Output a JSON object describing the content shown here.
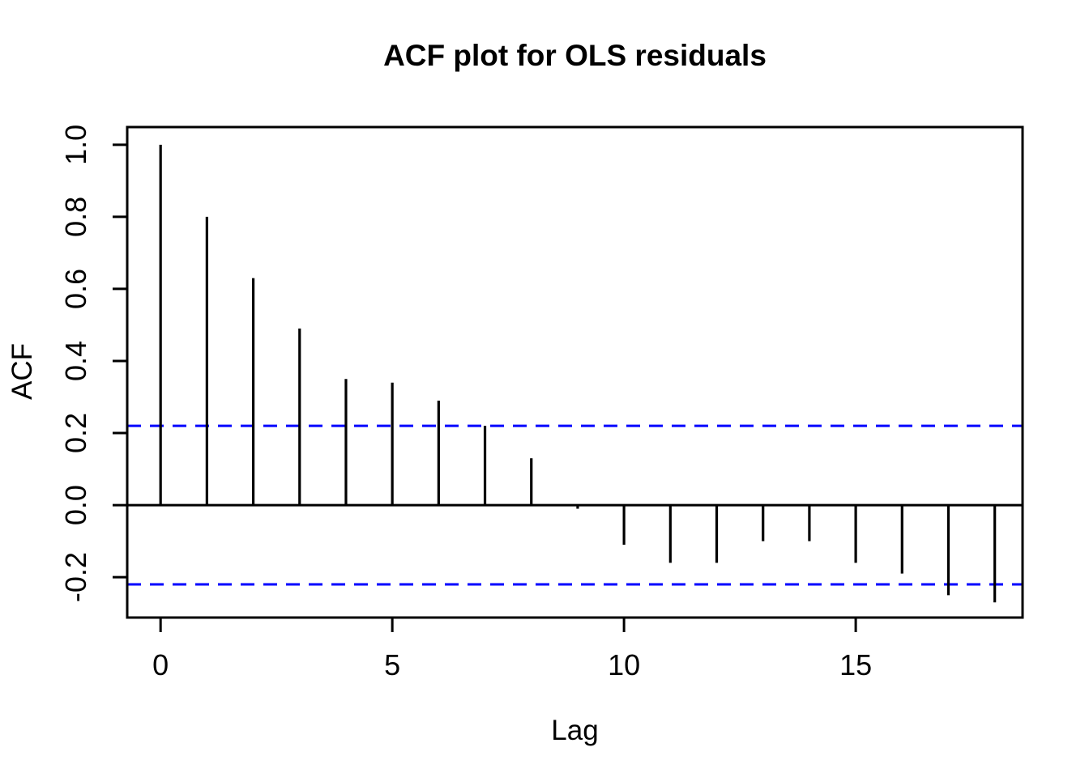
{
  "chart_data": {
    "type": "bar",
    "subtype": "acf-stem-plot",
    "title": "ACF plot for OLS residuals",
    "xlabel": "Lag",
    "ylabel": "ACF",
    "x": [
      0,
      1,
      2,
      3,
      4,
      5,
      6,
      7,
      8,
      9,
      10,
      11,
      12,
      13,
      14,
      15,
      16,
      17,
      18
    ],
    "values": [
      1.0,
      0.8,
      0.63,
      0.49,
      0.35,
      0.34,
      0.29,
      0.22,
      0.13,
      -0.01,
      -0.11,
      -0.16,
      -0.16,
      -0.1,
      -0.1,
      -0.16,
      -0.19,
      -0.25,
      -0.27
    ],
    "confidence_bounds": [
      0.22,
      -0.22
    ],
    "zero_line": 0,
    "xtick_values": [
      0,
      5,
      10,
      15
    ],
    "xtick_labels": [
      "0",
      "5",
      "10",
      "15"
    ],
    "ytick_values": [
      1.0,
      0.8,
      0.6,
      0.4,
      0.2,
      0.0,
      -0.2
    ],
    "ytick_labels": [
      "1.0",
      "0.8",
      "0.6",
      "0.4",
      "0.2",
      "0.0",
      "-0.2"
    ],
    "xlim": [
      -0.72,
      18.6
    ],
    "ylim": [
      -0.312,
      1.049
    ],
    "grid": false,
    "legend": null,
    "colors": {
      "bars": "#000000",
      "confidence_line": "#0000FF",
      "axis": "#000000",
      "background": "#FFFFFF"
    },
    "line_styles": {
      "confidence": "dashed",
      "bars": "solid"
    }
  }
}
